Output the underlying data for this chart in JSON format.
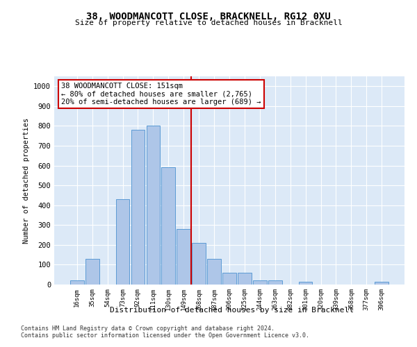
{
  "title": "38, WOODMANCOTT CLOSE, BRACKNELL, RG12 0XU",
  "subtitle": "Size of property relative to detached houses in Bracknell",
  "xlabel": "Distribution of detached houses by size in Bracknell",
  "ylabel": "Number of detached properties",
  "bar_labels": [
    "16sqm",
    "35sqm",
    "54sqm",
    "73sqm",
    "92sqm",
    "111sqm",
    "130sqm",
    "149sqm",
    "168sqm",
    "187sqm",
    "206sqm",
    "225sqm",
    "244sqm",
    "263sqm",
    "282sqm",
    "301sqm",
    "320sqm",
    "339sqm",
    "358sqm",
    "377sqm",
    "396sqm"
  ],
  "bar_values": [
    20,
    130,
    0,
    430,
    780,
    800,
    590,
    280,
    210,
    130,
    60,
    60,
    20,
    20,
    0,
    15,
    0,
    0,
    0,
    0,
    15
  ],
  "bar_color": "#aec6e8",
  "bar_edge_color": "#5b9bd5",
  "vline_color": "#cc0000",
  "vline_pos": 7.5,
  "annotation_text": "38 WOODMANCOTT CLOSE: 151sqm\n← 80% of detached houses are smaller (2,765)\n20% of semi-detached houses are larger (689) →",
  "annotation_box_color": "#ffffff",
  "annotation_box_edge": "#cc0000",
  "ylim": [
    0,
    1050
  ],
  "yticks": [
    0,
    100,
    200,
    300,
    400,
    500,
    600,
    700,
    800,
    900,
    1000
  ],
  "bg_color": "#dce9f7",
  "footnote1": "Contains HM Land Registry data © Crown copyright and database right 2024.",
  "footnote2": "Contains public sector information licensed under the Open Government Licence v3.0."
}
